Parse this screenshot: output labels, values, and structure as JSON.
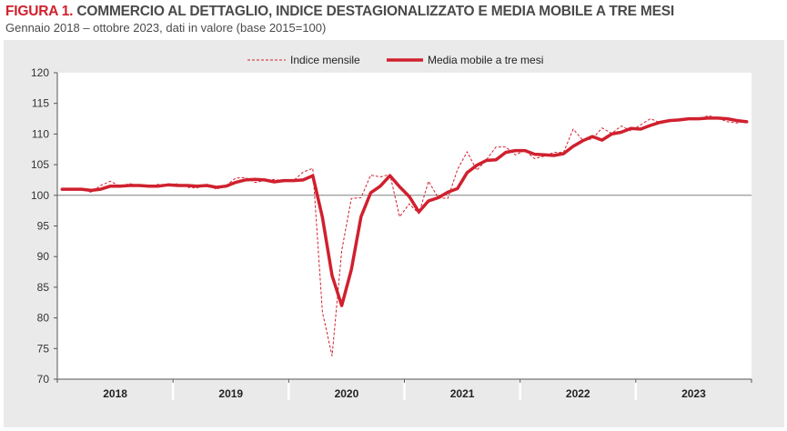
{
  "header": {
    "figure_label": "FIGURA 1.",
    "title": "COMMERCIO AL DETTAGLIO, INDICE DESTAGIONALIZZATO E MEDIA MOBILE A TRE MESI",
    "subtitle": "Gennaio 2018 – ottobre 2023, dati in valore (base 2015=100)"
  },
  "colors": {
    "series": "#d0202e",
    "reference": "#808080",
    "panel": "#eaeaea"
  },
  "chart_data": {
    "type": "line",
    "ylim": [
      70,
      120
    ],
    "yticks": [
      70,
      75,
      80,
      85,
      90,
      95,
      100,
      105,
      110,
      115,
      120
    ],
    "reference_line": 100,
    "years": [
      "2018",
      "2019",
      "2020",
      "2021",
      "2022",
      "2023"
    ],
    "legend": [
      "Indice mensile",
      "Media mobile a tre mesi"
    ],
    "series": [
      {
        "name": "Indice mensile",
        "style": "dashed",
        "values": [
          100.8,
          101.1,
          101.0,
          100.5,
          101.6,
          102.3,
          101.5,
          101.9,
          101.6,
          101.4,
          101.8,
          101.7,
          101.9,
          101.3,
          101.2,
          101.8,
          101.0,
          101.6,
          102.8,
          102.9,
          102.1,
          102.4,
          102.6,
          102.3,
          102.4,
          103.8,
          104.4,
          80.9,
          73.8,
          91.0,
          99.5,
          99.6,
          103.3,
          103.0,
          103.4,
          96.5,
          98.6,
          97.0,
          102.3,
          99.6,
          99.5,
          104.2,
          107.1,
          104.1,
          105.8,
          107.9,
          107.9,
          106.6,
          107.3,
          106.0,
          106.4,
          107.0,
          107.0,
          110.8,
          109.0,
          109.2,
          111.0,
          110.1,
          111.3,
          110.5,
          111.5,
          112.5,
          111.9,
          112.2,
          112.3,
          112.6,
          112.4,
          113.0,
          112.6,
          112.0,
          111.8,
          112.2
        ]
      },
      {
        "name": "Media mobile a tre mesi",
        "style": "solid",
        "values": [
          101.0,
          101.0,
          101.0,
          100.8,
          101.0,
          101.5,
          101.5,
          101.6,
          101.6,
          101.5,
          101.5,
          101.7,
          101.6,
          101.6,
          101.5,
          101.6,
          101.3,
          101.5,
          102.1,
          102.5,
          102.6,
          102.5,
          102.2,
          102.4,
          102.4,
          102.5,
          103.2,
          96.4,
          86.9,
          82.0,
          87.9,
          96.5,
          100.4,
          101.5,
          103.2,
          101.4,
          99.8,
          97.3,
          99.1,
          99.6,
          100.5,
          101.1,
          103.7,
          104.9,
          105.7,
          105.8,
          107.0,
          107.3,
          107.3,
          106.7,
          106.6,
          106.5,
          106.8,
          108.0,
          108.9,
          109.6,
          109.0,
          110.0,
          110.3,
          110.9,
          110.8,
          111.4,
          111.9,
          112.2,
          112.3,
          112.5,
          112.5,
          112.6,
          112.6,
          112.5,
          112.2,
          112.0
        ]
      }
    ]
  }
}
